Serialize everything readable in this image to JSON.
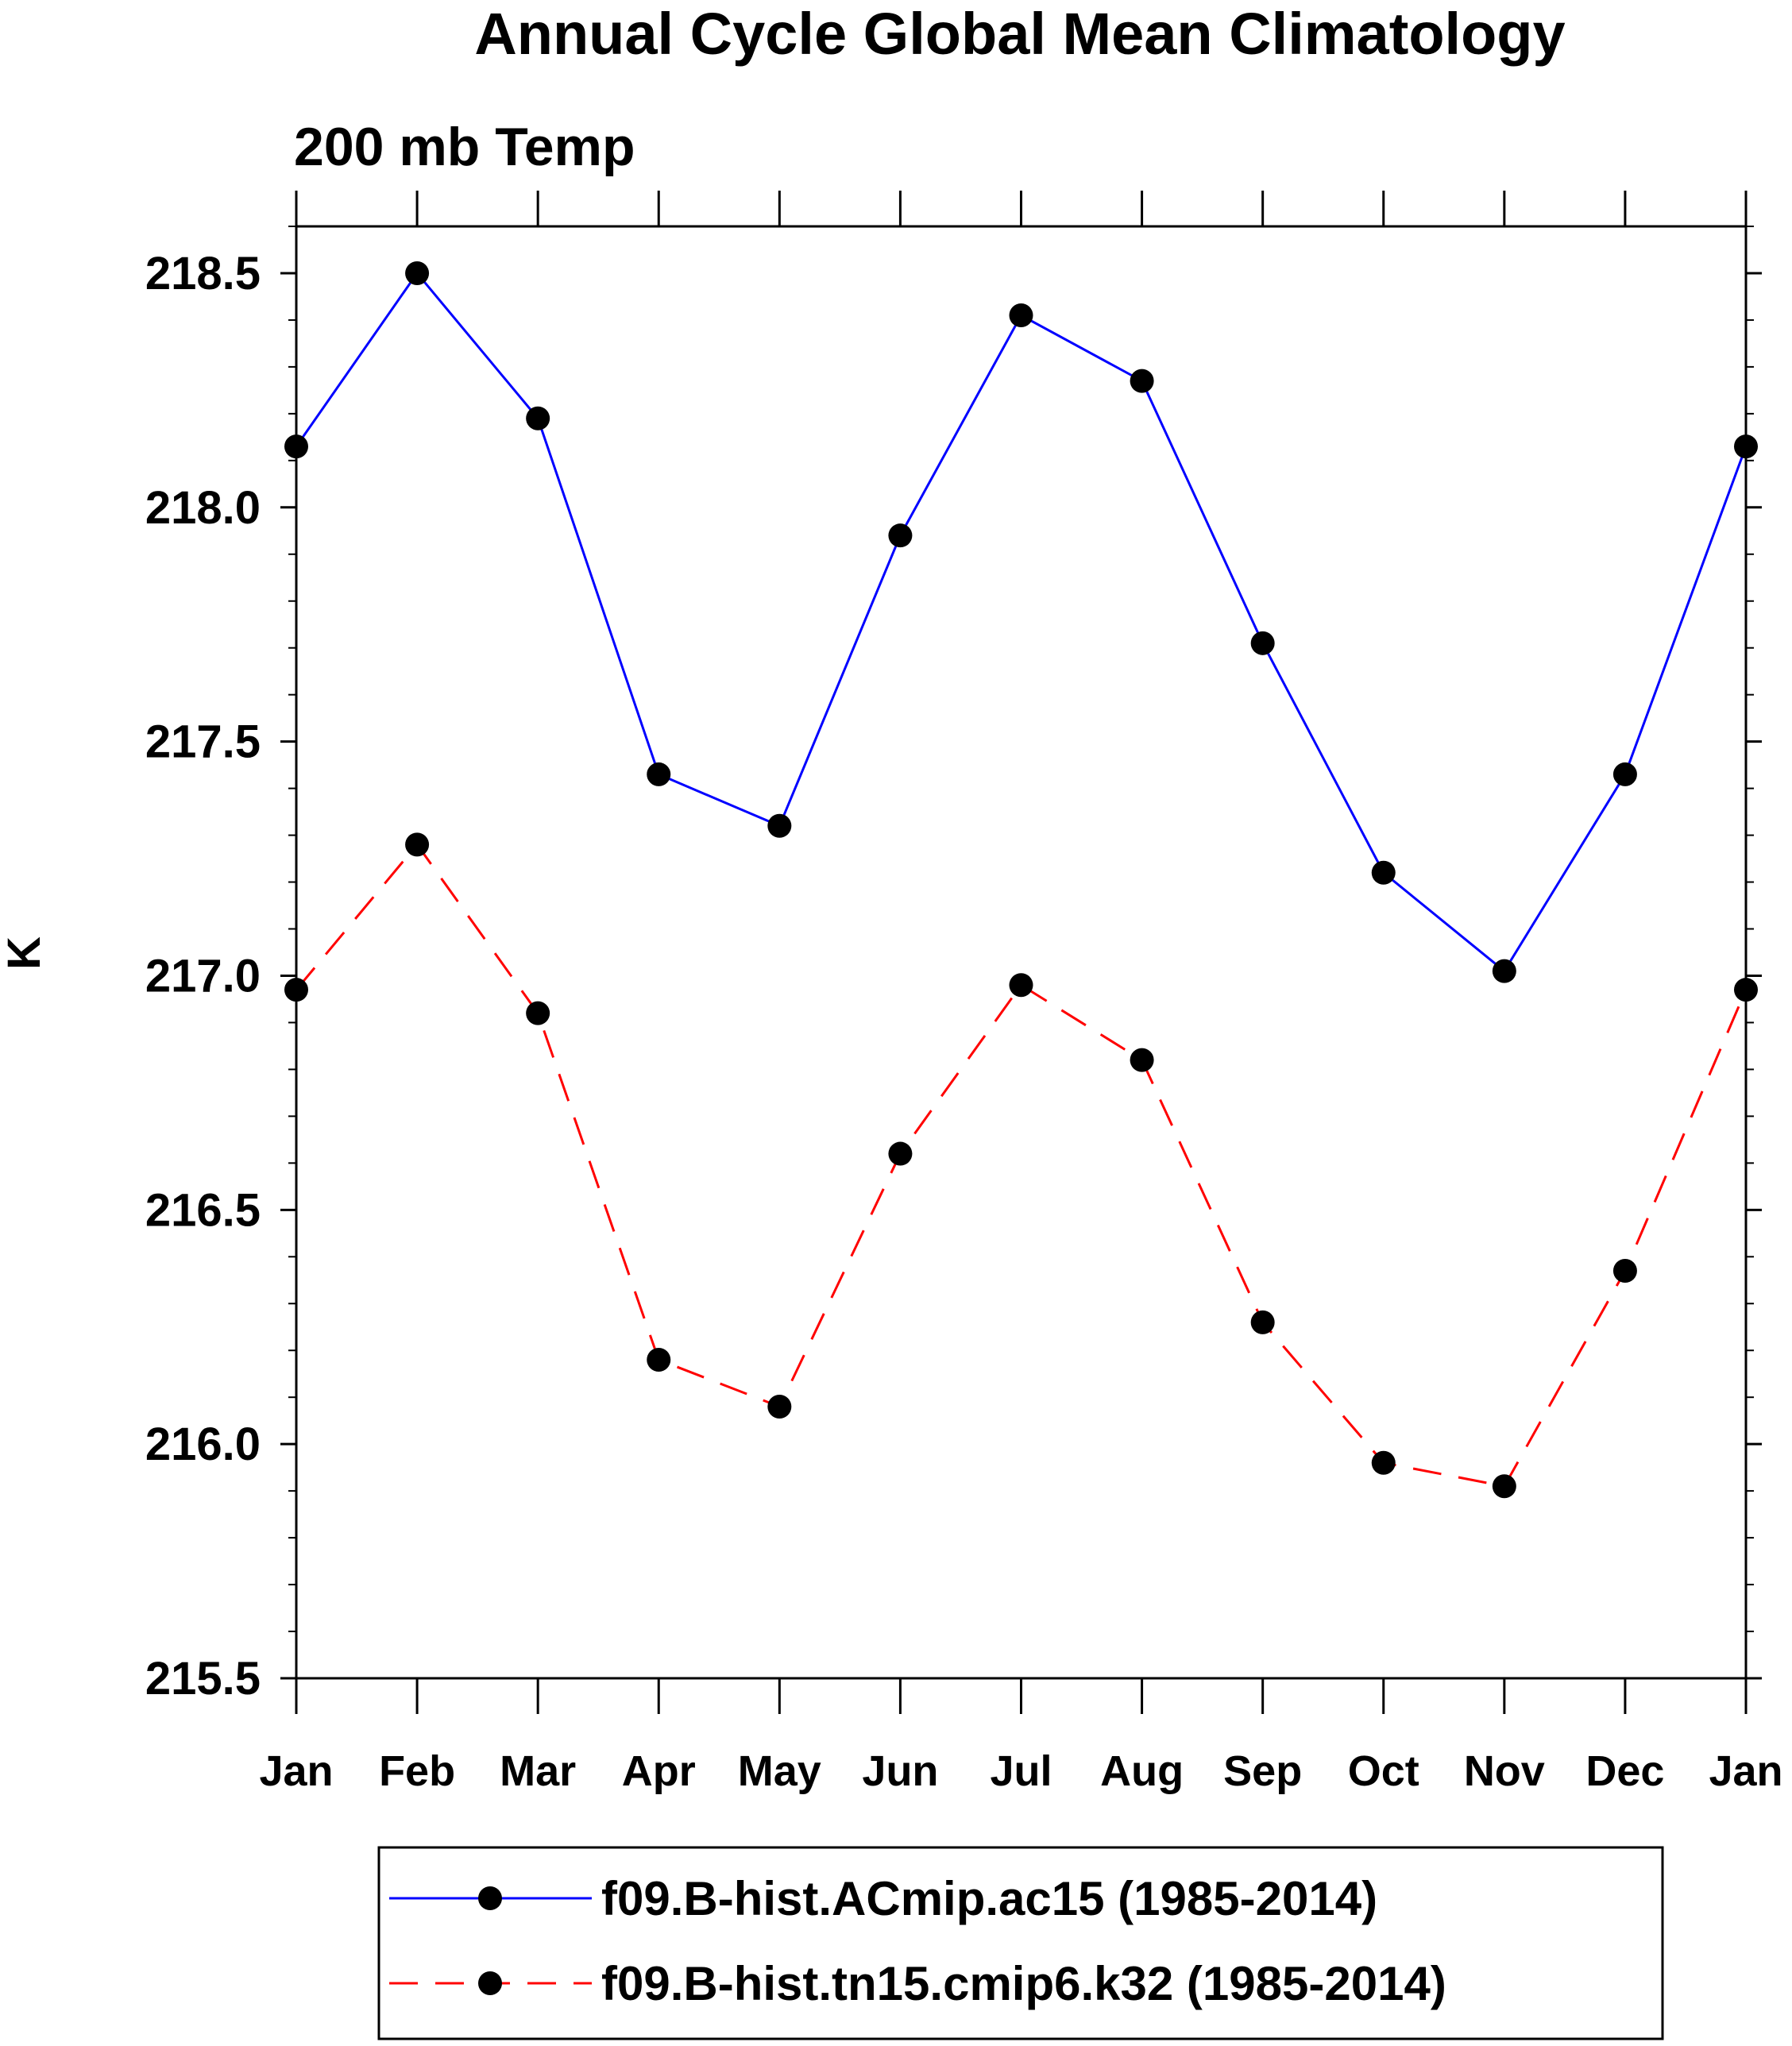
{
  "chart_data": {
    "type": "line",
    "title": "Annual Cycle Global Mean Climatology",
    "subtitle": "200 mb Temp",
    "xlabel": "",
    "ylabel": "K",
    "categories": [
      "Jan",
      "Feb",
      "Mar",
      "Apr",
      "May",
      "Jun",
      "Jul",
      "Aug",
      "Sep",
      "Oct",
      "Nov",
      "Dec",
      "Jan"
    ],
    "ylim": [
      215.5,
      218.6
    ],
    "yticks": [
      "215.5",
      "216.0",
      "216.5",
      "217.0",
      "217.5",
      "218.0",
      "218.5"
    ],
    "grid": false,
    "legend_position": "bottom",
    "series": [
      {
        "name": "f09.B-hist.ACmip.ac15 (1985-2014)",
        "color": "#0000ff",
        "line_style": "solid",
        "marker": "filled-circle",
        "values": [
          218.13,
          218.5,
          218.19,
          217.43,
          217.32,
          217.94,
          218.41,
          218.27,
          217.71,
          217.22,
          217.01,
          217.43,
          218.13
        ]
      },
      {
        "name": "f09.B-hist.tn15.cmip6.k32 (1985-2014)",
        "color": "#ff0000",
        "line_style": "dashed",
        "marker": "filled-circle",
        "values": [
          216.97,
          217.28,
          216.92,
          216.18,
          216.08,
          216.62,
          216.98,
          216.82,
          216.26,
          215.96,
          215.91,
          216.37,
          216.97
        ]
      }
    ]
  }
}
